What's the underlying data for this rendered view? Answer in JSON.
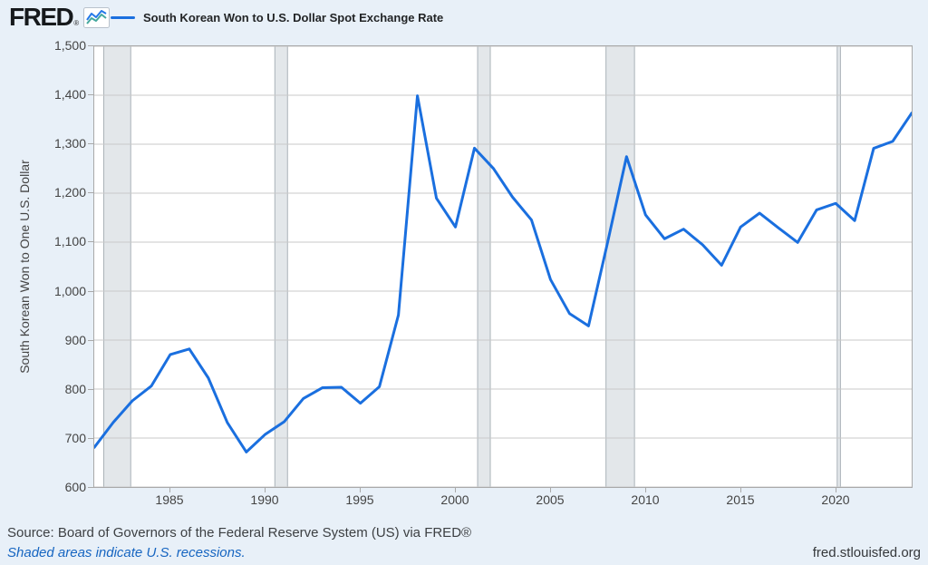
{
  "header": {
    "logo": "FRED",
    "logo_reg": "®",
    "series_title": "South Korean Won to U.S. Dollar Spot Exchange Rate"
  },
  "footer": {
    "source": "Source: Board of Governors of the Federal Reserve System (US) via FRED®",
    "note": "Shaded areas indicate U.S. recessions.",
    "site": "fred.stlouisfed.org"
  },
  "chart_data": {
    "type": "line",
    "title": "South Korean Won to U.S. Dollar Spot Exchange Rate",
    "ylabel": "South Korean Won to One U.S. Dollar",
    "xlabel": "",
    "grid": true,
    "legend_position": "top-left",
    "xlim": [
      1981,
      2024
    ],
    "ylim": [
      600,
      1500
    ],
    "x": [
      1981,
      1982,
      1983,
      1984,
      1985,
      1986,
      1987,
      1988,
      1989,
      1990,
      1991,
      1992,
      1993,
      1994,
      1995,
      1996,
      1997,
      1998,
      1999,
      2000,
      2001,
      2002,
      2003,
      2004,
      2005,
      2006,
      2007,
      2008,
      2009,
      2010,
      2011,
      2012,
      2013,
      2014,
      2015,
      2016,
      2017,
      2018,
      2019,
      2020,
      2021,
      2022,
      2023,
      2024
    ],
    "values": [
      681.0,
      731.9,
      776.0,
      806.1,
      870.5,
      881.8,
      822.6,
      731.6,
      671.5,
      707.8,
      733.6,
      780.7,
      802.7,
      803.6,
      771.1,
      804.8,
      951.1,
      1398.9,
      1189.8,
      1131.0,
      1292.0,
      1250.3,
      1192.1,
      1145.2,
      1023.7,
      954.3,
      929.0,
      1098.7,
      1274.6,
      1155.7,
      1106.9,
      1126.5,
      1094.7,
      1052.7,
      1131.0,
      1159.3,
      1129.0,
      1099.3,
      1165.8,
      1179.2,
      1144.0,
      1291.5,
      1305.7,
      1363.4
    ],
    "yticks": [
      600,
      700,
      800,
      900,
      1000,
      1100,
      1200,
      1300,
      1400,
      1500
    ],
    "ytick_labels": [
      "600",
      "700",
      "800",
      "900",
      "1,000",
      "1,100",
      "1,200",
      "1,300",
      "1,400",
      "1,500"
    ],
    "xticks": [
      1985,
      1990,
      1995,
      2000,
      2005,
      2010,
      2015,
      2020
    ],
    "recessions": [
      [
        1981.5,
        1982.917
      ],
      [
        1990.5,
        1991.167
      ],
      [
        2001.167,
        2001.833
      ],
      [
        2007.917,
        2009.417
      ],
      [
        2020.083,
        2020.25
      ]
    ],
    "colors": {
      "line": "#1a6fdf",
      "grid": "#c9c9c9",
      "recession": "#e3e7ea",
      "recession_edge": "#aab2b8",
      "plot_border": "#a9a9a9",
      "background": "#e8f0f8",
      "plot_background": "#ffffff",
      "note_blue": "#1665c1",
      "icon_blue": "#2478e8",
      "icon_teal": "#44a89e"
    }
  }
}
